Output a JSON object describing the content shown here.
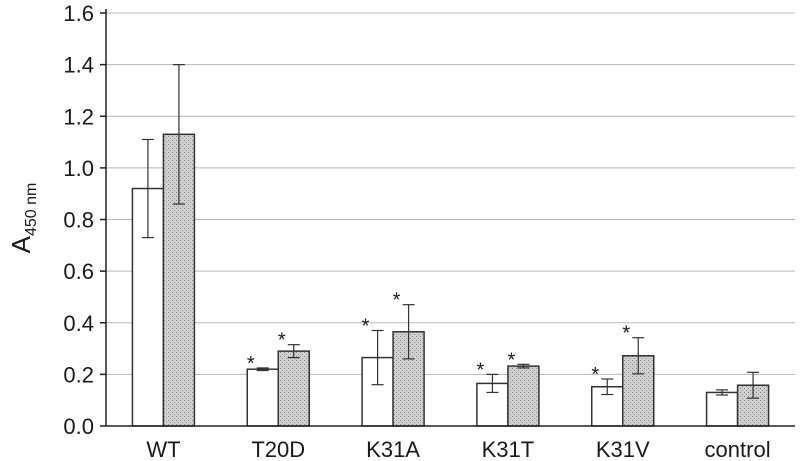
{
  "chart_data": {
    "type": "bar",
    "title": "",
    "xlabel": "",
    "ylabel": "A",
    "ylabel_subscript": "450 nm",
    "ylim": [
      0,
      1.6
    ],
    "yticks": [
      "0.0",
      "0.2",
      "0.4",
      "0.6",
      "0.8",
      "1.0",
      "1.2",
      "1.4",
      "1.6"
    ],
    "grid": "horizontal",
    "categories": [
      "WT",
      "T20D",
      "K31A",
      "K31T",
      "K31V",
      "control"
    ],
    "series": [
      {
        "fill": "#ffffff",
        "pattern": "none",
        "values": [
          0.92,
          0.22,
          0.265,
          0.165,
          0.152,
          0.13
        ],
        "errors": [
          0.19,
          0.005,
          0.105,
          0.035,
          0.03,
          0.01
        ],
        "significance": [
          "",
          "*",
          "*",
          "*",
          "*",
          ""
        ]
      },
      {
        "fill": "#c8c8c8",
        "pattern": "stipple",
        "values": [
          1.13,
          0.29,
          0.365,
          0.232,
          0.272,
          0.158
        ],
        "errors": [
          0.27,
          0.025,
          0.105,
          0.007,
          0.07,
          0.05
        ],
        "significance": [
          "",
          "*",
          "*",
          "*",
          "*",
          ""
        ]
      }
    ]
  }
}
